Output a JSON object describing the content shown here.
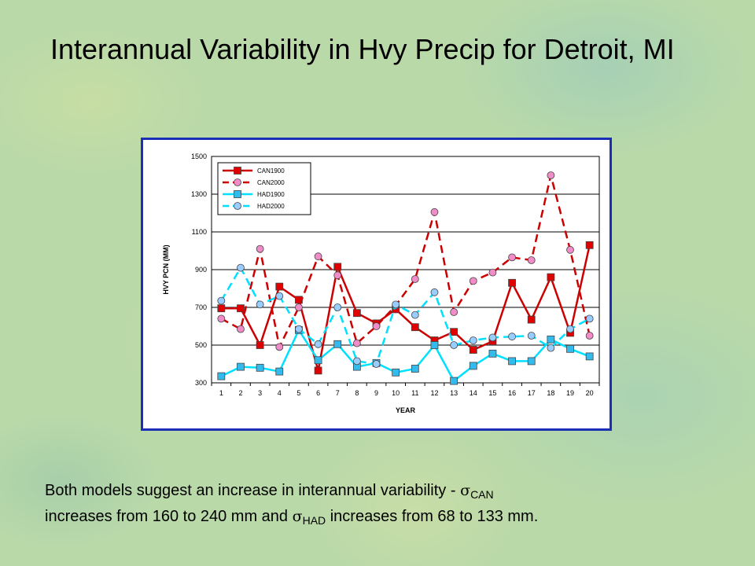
{
  "slide": {
    "title": "Interannual Variability in Hvy Precip for Detroit, MI",
    "caption": {
      "part1": "Both models suggest an increase in interannual variability - ",
      "sigma": "σ",
      "sub_can": "CAN",
      "part2": " increases from 160 to 240 mm and ",
      "sub_had": "HAD",
      "part3": " increases from 68 to 133 mm."
    }
  },
  "chart_data": {
    "type": "line",
    "xlabel": "YEAR",
    "ylabel": "HVY PCN (MM)",
    "ylim": [
      300,
      1500
    ],
    "yticks": [
      300,
      500,
      700,
      900,
      1100,
      1300,
      1500
    ],
    "x": [
      1,
      2,
      3,
      4,
      5,
      6,
      7,
      8,
      9,
      10,
      11,
      12,
      13,
      14,
      15,
      16,
      17,
      18,
      19,
      20
    ],
    "grid": true,
    "legend_position": "top-left",
    "series": [
      {
        "name": "CAN1900",
        "color": "#cc0000",
        "markerFill": "#e00000",
        "marker": "square",
        "dash": false,
        "values": [
          695,
          695,
          500,
          810,
          740,
          365,
          915,
          670,
          615,
          690,
          595,
          525,
          570,
          475,
          520,
          830,
          635,
          860,
          565,
          1030
        ]
      },
      {
        "name": "CAN2000",
        "color": "#cc0000",
        "markerFill": "#f08cc8",
        "marker": "circle",
        "dash": true,
        "values": [
          640,
          585,
          1010,
          490,
          700,
          970,
          870,
          510,
          600,
          710,
          850,
          1205,
          675,
          840,
          885,
          965,
          950,
          1400,
          1005,
          550
        ]
      },
      {
        "name": "HAD1900",
        "color": "#00e0ff",
        "markerFill": "#33bbee",
        "marker": "square",
        "dash": false,
        "values": [
          335,
          385,
          380,
          360,
          580,
          420,
          505,
          385,
          405,
          355,
          375,
          500,
          310,
          390,
          455,
          415,
          415,
          530,
          480,
          440
        ]
      },
      {
        "name": "HAD2000",
        "color": "#00e0ff",
        "markerFill": "#99ccff",
        "marker": "circle",
        "dash": true,
        "values": [
          735,
          910,
          715,
          760,
          585,
          505,
          700,
          415,
          400,
          715,
          660,
          780,
          500,
          525,
          540,
          545,
          550,
          485,
          585,
          640
        ]
      }
    ]
  }
}
